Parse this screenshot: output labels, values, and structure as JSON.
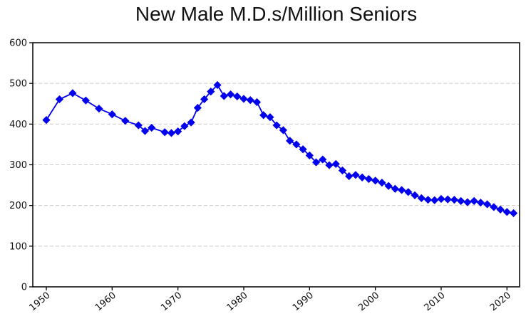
{
  "chart_data": {
    "type": "line",
    "title": "New Male M.D.s/Million Seniors",
    "xlabel": "",
    "ylabel": "",
    "x": [
      1950,
      1952,
      1954,
      1956,
      1958,
      1960,
      1962,
      1964,
      1965,
      1966,
      1968,
      1969,
      1970,
      1971,
      1972,
      1973,
      1974,
      1975,
      1976,
      1977,
      1978,
      1979,
      1980,
      1981,
      1982,
      1983,
      1984,
      1985,
      1986,
      1987,
      1988,
      1989,
      1990,
      1991,
      1992,
      1993,
      1994,
      1995,
      1996,
      1997,
      1998,
      1999,
      2000,
      2001,
      2002,
      2003,
      2004,
      2005,
      2006,
      2007,
      2008,
      2009,
      2010,
      2011,
      2012,
      2013,
      2014,
      2015,
      2016,
      2017,
      2018,
      2019,
      2020,
      2021
    ],
    "values": [
      410,
      461,
      476,
      458,
      438,
      424,
      408,
      397,
      383,
      391,
      380,
      378,
      382,
      395,
      404,
      440,
      461,
      480,
      496,
      469,
      473,
      468,
      462,
      459,
      454,
      422,
      417,
      397,
      385,
      359,
      350,
      338,
      323,
      306,
      313,
      299,
      302,
      286,
      272,
      275,
      269,
      265,
      261,
      256,
      248,
      241,
      238,
      233,
      225,
      218,
      214,
      213,
      216,
      215,
      214,
      211,
      208,
      211,
      207,
      203,
      196,
      190,
      184,
      181
    ],
    "ylim": [
      0,
      600
    ],
    "xlim": [
      1948,
      2023
    ],
    "yticks": [
      0,
      100,
      200,
      300,
      400,
      500,
      600
    ],
    "xticks": [
      1950,
      1960,
      1970,
      1980,
      1990,
      2000,
      2010,
      2020
    ],
    "x_tick_rotation_deg": 40,
    "grid": "horizontal-dashed",
    "legend": "none",
    "marker": "diamond",
    "line_color": "#0000EE",
    "marker_color": "#0000EE",
    "grid_color": "#c9c9c9",
    "axis_color": "#000000",
    "background_color": "#ffffff"
  }
}
